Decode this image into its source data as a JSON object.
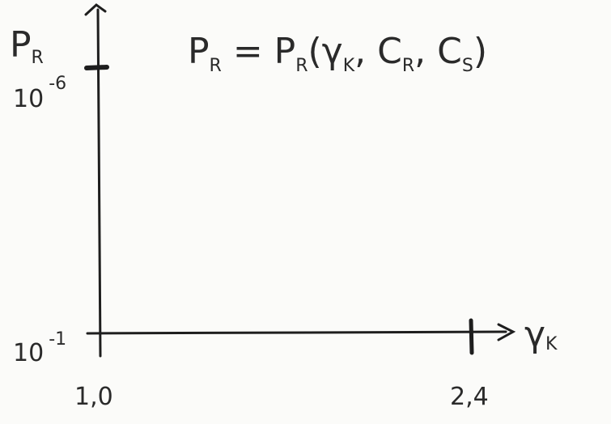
{
  "formula": [
    {
      "text": "P",
      "sub": "R"
    },
    {
      "text": " = P",
      "sub": "R"
    },
    {
      "text": "(γ",
      "sub": "K"
    },
    {
      "text": ", C",
      "sub": "R"
    },
    {
      "text": ", C",
      "sub": "S"
    },
    {
      "text": ")"
    }
  ],
  "y_axis": {
    "label": {
      "text": "P",
      "sub": "R"
    },
    "ticks": [
      {
        "base": "10",
        "exp": "-6"
      },
      {
        "base": "10",
        "exp": "-1"
      }
    ]
  },
  "x_axis": {
    "label": {
      "text": "γ",
      "sub": "K"
    },
    "ticks": [
      "1,0",
      "2,4"
    ]
  }
}
